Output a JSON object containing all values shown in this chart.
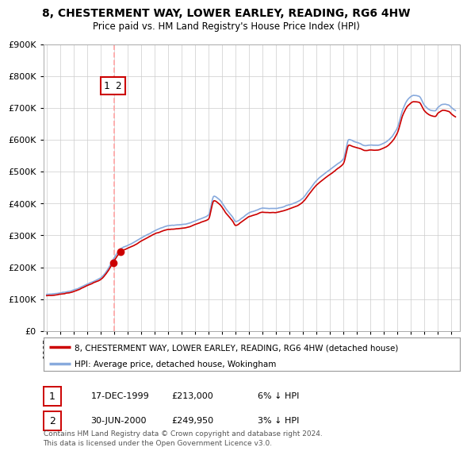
{
  "title": "8, CHESTERMENT WAY, LOWER EARLEY, READING, RG6 4HW",
  "subtitle": "Price paid vs. HM Land Registry's House Price Index (HPI)",
  "legend_property": "8, CHESTERMENT WAY, LOWER EARLEY, READING, RG6 4HW (detached house)",
  "legend_hpi": "HPI: Average price, detached house, Wokingham",
  "transactions": [
    {
      "date": 1999.96,
      "price": 213000
    },
    {
      "date": 2000.49,
      "price": 249950
    }
  ],
  "table_rows": [
    [
      "1",
      "17-DEC-1999",
      "£213,000",
      "6% ↓ HPI"
    ],
    [
      "2",
      "30-JUN-2000",
      "£249,950",
      "3% ↓ HPI"
    ]
  ],
  "footnote": "Contains HM Land Registry data © Crown copyright and database right 2024.\nThis data is licensed under the Open Government Licence v3.0.",
  "vline_x": 2000.0,
  "ylim": [
    0,
    900000
  ],
  "xlim_start": 1994.75,
  "xlim_end": 2025.6,
  "bg": "#ffffff",
  "grid_color": "#cccccc",
  "hpi_color": "#88aadd",
  "prop_color": "#cc0000",
  "vline_color": "#ffaaaa",
  "ann_color": "#cc0000",
  "ytick_labels": [
    "£0",
    "£100K",
    "£200K",
    "£300K",
    "£400K",
    "£500K",
    "£600K",
    "£700K",
    "£800K",
    "£900K"
  ],
  "ytick_values": [
    0,
    100000,
    200000,
    300000,
    400000,
    500000,
    600000,
    700000,
    800000,
    900000
  ],
  "xtick_years": [
    1995,
    1996,
    1997,
    1998,
    1999,
    2000,
    2001,
    2002,
    2003,
    2004,
    2005,
    2006,
    2007,
    2008,
    2009,
    2010,
    2011,
    2012,
    2013,
    2014,
    2015,
    2016,
    2017,
    2018,
    2019,
    2020,
    2021,
    2022,
    2023,
    2024,
    2025
  ]
}
